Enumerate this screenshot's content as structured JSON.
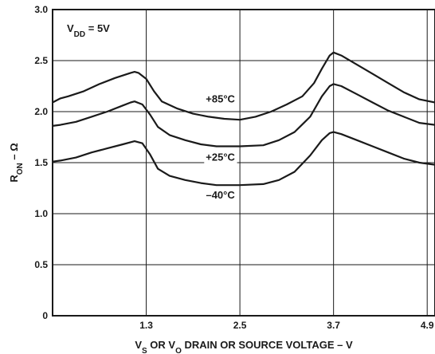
{
  "chart_data": {
    "type": "line",
    "title": "",
    "annotation": {
      "main": "V",
      "sub": "DD",
      "rest": " = 5V"
    },
    "xlabel": {
      "parts": [
        {
          "t": "V",
          "sub": false
        },
        {
          "t": "S",
          "sub": true
        },
        {
          "t": " OR V",
          "sub": false
        },
        {
          "t": "O",
          "sub": true
        },
        {
          "t": " DRAIN OR SOURCE VOLTAGE – V",
          "sub": false
        }
      ]
    },
    "ylabel": {
      "parts": [
        {
          "t": "R",
          "sub": false
        },
        {
          "t": "ON",
          "sub": true
        },
        {
          "t": " – Ω",
          "sub": false
        }
      ]
    },
    "xlim": [
      0.1,
      5.0
    ],
    "ylim": [
      0,
      3.0
    ],
    "x_ticks": [
      {
        "value": 1.3,
        "label": "1.3"
      },
      {
        "value": 2.5,
        "label": "2.5"
      },
      {
        "value": 3.7,
        "label": "3.7"
      },
      {
        "value": 4.9,
        "label": "4.9"
      }
    ],
    "y_ticks": [
      {
        "value": 0,
        "label": "0"
      },
      {
        "value": 0.5,
        "label": "0.5"
      },
      {
        "value": 1.0,
        "label": "1.0"
      },
      {
        "value": 1.5,
        "label": "1.5"
      },
      {
        "value": 2.0,
        "label": "2.0"
      },
      {
        "value": 2.5,
        "label": "2.5"
      },
      {
        "value": 3.0,
        "label": "3.0"
      }
    ],
    "grid": true,
    "series": [
      {
        "name": "+85°C",
        "label_at": [
          2.25,
          2.09
        ],
        "points": [
          [
            0.1,
            2.09
          ],
          [
            0.2,
            2.13
          ],
          [
            0.3,
            2.15
          ],
          [
            0.5,
            2.2
          ],
          [
            0.7,
            2.27
          ],
          [
            0.9,
            2.33
          ],
          [
            1.1,
            2.38
          ],
          [
            1.15,
            2.39
          ],
          [
            1.2,
            2.38
          ],
          [
            1.3,
            2.32
          ],
          [
            1.4,
            2.2
          ],
          [
            1.5,
            2.1
          ],
          [
            1.7,
            2.03
          ],
          [
            1.9,
            1.98
          ],
          [
            2.1,
            1.95
          ],
          [
            2.3,
            1.93
          ],
          [
            2.5,
            1.92
          ],
          [
            2.7,
            1.95
          ],
          [
            2.9,
            2.0
          ],
          [
            3.1,
            2.07
          ],
          [
            3.3,
            2.15
          ],
          [
            3.45,
            2.28
          ],
          [
            3.55,
            2.42
          ],
          [
            3.65,
            2.55
          ],
          [
            3.7,
            2.58
          ],
          [
            3.8,
            2.55
          ],
          [
            4.0,
            2.46
          ],
          [
            4.2,
            2.37
          ],
          [
            4.4,
            2.28
          ],
          [
            4.6,
            2.19
          ],
          [
            4.8,
            2.12
          ],
          [
            5.0,
            2.09
          ]
        ]
      },
      {
        "name": "+25°C",
        "label_at": [
          2.25,
          1.52
        ],
        "points": [
          [
            0.1,
            1.86
          ],
          [
            0.2,
            1.87
          ],
          [
            0.4,
            1.9
          ],
          [
            0.6,
            1.95
          ],
          [
            0.8,
            2.0
          ],
          [
            1.0,
            2.06
          ],
          [
            1.1,
            2.09
          ],
          [
            1.15,
            2.1
          ],
          [
            1.25,
            2.07
          ],
          [
            1.35,
            1.97
          ],
          [
            1.45,
            1.85
          ],
          [
            1.6,
            1.77
          ],
          [
            1.8,
            1.72
          ],
          [
            2.0,
            1.68
          ],
          [
            2.2,
            1.66
          ],
          [
            2.5,
            1.66
          ],
          [
            2.8,
            1.67
          ],
          [
            3.0,
            1.72
          ],
          [
            3.2,
            1.8
          ],
          [
            3.4,
            1.95
          ],
          [
            3.55,
            2.15
          ],
          [
            3.65,
            2.25
          ],
          [
            3.7,
            2.27
          ],
          [
            3.8,
            2.25
          ],
          [
            4.0,
            2.17
          ],
          [
            4.2,
            2.09
          ],
          [
            4.4,
            2.01
          ],
          [
            4.6,
            1.95
          ],
          [
            4.8,
            1.89
          ],
          [
            5.0,
            1.87
          ]
        ]
      },
      {
        "name": "–40°C",
        "label_at": [
          2.25,
          1.15
        ],
        "points": [
          [
            0.1,
            1.51
          ],
          [
            0.2,
            1.52
          ],
          [
            0.4,
            1.55
          ],
          [
            0.6,
            1.6
          ],
          [
            0.8,
            1.64
          ],
          [
            1.0,
            1.68
          ],
          [
            1.15,
            1.71
          ],
          [
            1.25,
            1.69
          ],
          [
            1.35,
            1.58
          ],
          [
            1.45,
            1.44
          ],
          [
            1.6,
            1.37
          ],
          [
            1.8,
            1.33
          ],
          [
            2.0,
            1.3
          ],
          [
            2.2,
            1.28
          ],
          [
            2.5,
            1.28
          ],
          [
            2.8,
            1.29
          ],
          [
            3.0,
            1.33
          ],
          [
            3.2,
            1.41
          ],
          [
            3.4,
            1.57
          ],
          [
            3.55,
            1.72
          ],
          [
            3.65,
            1.79
          ],
          [
            3.7,
            1.8
          ],
          [
            3.8,
            1.78
          ],
          [
            4.0,
            1.72
          ],
          [
            4.2,
            1.66
          ],
          [
            4.4,
            1.6
          ],
          [
            4.6,
            1.54
          ],
          [
            4.8,
            1.5
          ],
          [
            5.0,
            1.48
          ]
        ]
      }
    ]
  }
}
